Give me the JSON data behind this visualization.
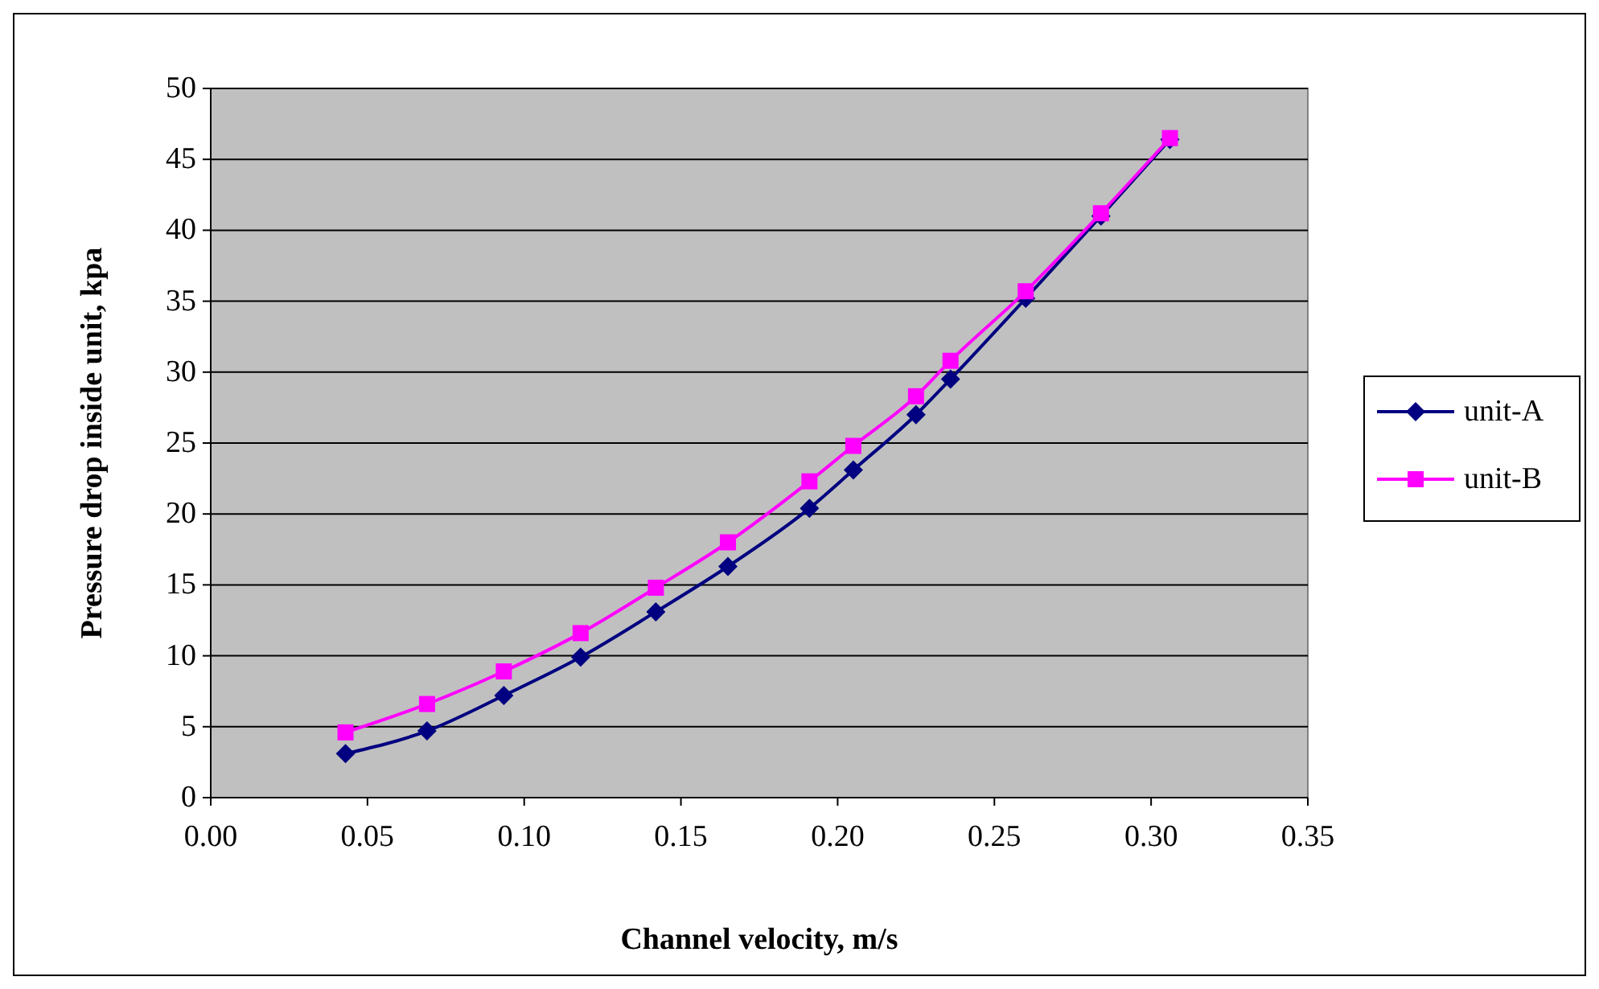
{
  "chart_data": {
    "type": "line",
    "xlabel": "Channel velocity, m/s",
    "ylabel": "Pressure drop inside unit, kpa",
    "xlim": [
      0,
      0.35
    ],
    "xticks": [
      {
        "value": 0,
        "label": "0.00"
      },
      {
        "value": 0.05,
        "label": "0.05"
      },
      {
        "value": 0.1,
        "label": "0.10"
      },
      {
        "value": 0.15,
        "label": "0.15"
      },
      {
        "value": 0.2,
        "label": "0.20"
      },
      {
        "value": 0.25,
        "label": "0.25"
      },
      {
        "value": 0.3,
        "label": "0.30"
      },
      {
        "value": 0.35,
        "label": "0.35"
      }
    ],
    "ylim": [
      0,
      50
    ],
    "yticks": [
      0,
      5,
      10,
      15,
      20,
      25,
      30,
      35,
      40,
      45,
      50
    ],
    "grid": "y",
    "legend": "right",
    "x": [
      0.043,
      0.069,
      0.0935,
      0.118,
      0.142,
      0.165,
      0.191,
      0.205,
      0.225,
      0.236,
      0.26,
      0.284,
      0.306
    ],
    "series": [
      {
        "name": "unit-A",
        "color": "#000080",
        "marker": "diamond",
        "values": [
          3.1,
          4.7,
          7.2,
          9.9,
          13.1,
          16.3,
          20.4,
          23.1,
          27.0,
          29.5,
          35.2,
          41.0,
          46.4
        ]
      },
      {
        "name": "unit-B",
        "color": "#ff00ff",
        "marker": "square",
        "values": [
          4.6,
          6.6,
          8.9,
          11.6,
          14.8,
          18.0,
          22.3,
          24.8,
          28.3,
          30.8,
          35.7,
          41.2,
          46.5
        ]
      }
    ]
  }
}
